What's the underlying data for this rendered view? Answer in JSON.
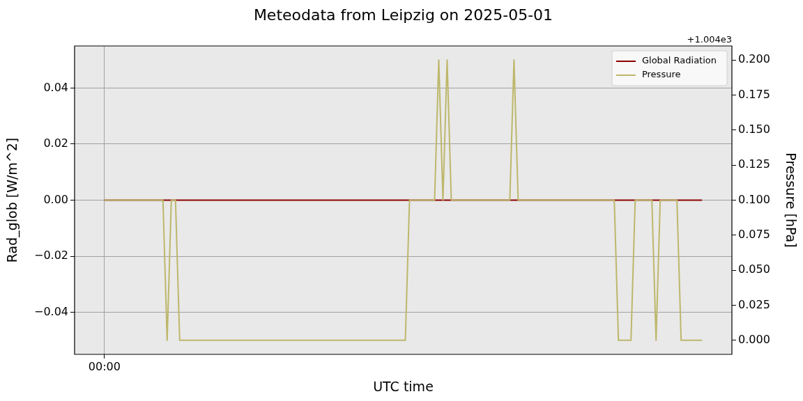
{
  "chart_data": {
    "type": "line",
    "title": "Meteodata from Leipzig on 2025-05-01",
    "xlabel": "UTC time",
    "ylabel": "Rad_glob [W/m^2]",
    "y2label": "Pressure [hPa]",
    "annotations": [
      "+1.004e3"
    ],
    "categories": [
      "00:00",
      null,
      null,
      null,
      null,
      null,
      null,
      null,
      null,
      null,
      null,
      null,
      null,
      null,
      null,
      null,
      null,
      null,
      null,
      null,
      null,
      null,
      null,
      null,
      null,
      null,
      null,
      null,
      null,
      null,
      null,
      null,
      null,
      null,
      null,
      null,
      null,
      null,
      null,
      null,
      null,
      null,
      null,
      null,
      null,
      null,
      null,
      null,
      null,
      null,
      null,
      null,
      null,
      null,
      null,
      null,
      null,
      null,
      null,
      null,
      null,
      null,
      null,
      null,
      null,
      null,
      null,
      null,
      null,
      null,
      null,
      null,
      null,
      null,
      null,
      null,
      null,
      null,
      null,
      null,
      null,
      null,
      null,
      null,
      null,
      null,
      null,
      null,
      null,
      null,
      null,
      null,
      null,
      null,
      null,
      null,
      null,
      null,
      null,
      null,
      null,
      null,
      null,
      null,
      null,
      null,
      null,
      null,
      null,
      null,
      null,
      null,
      null,
      null,
      null,
      null,
      null,
      null,
      null,
      null,
      null,
      null,
      null,
      null,
      null,
      null,
      null,
      null,
      null,
      null,
      null,
      null,
      null,
      null,
      null,
      null,
      null,
      null,
      null,
      null,
      null,
      null,
      null,
      null
    ],
    "ylim": [
      -0.055,
      0.055
    ],
    "yticks": [
      {
        "value": -0.04,
        "label": "−0.04"
      },
      {
        "value": -0.02,
        "label": "−0.02"
      },
      {
        "value": 0,
        "label": "0.00"
      },
      {
        "value": 0.02,
        "label": "0.02"
      },
      {
        "value": 0.04,
        "label": "0.04"
      }
    ],
    "y2lim": [
      -0.01,
      0.21
    ],
    "y2ticks": [
      {
        "value": 0,
        "label": "0.000"
      },
      {
        "value": 0.025,
        "label": "0.025"
      },
      {
        "value": 0.05,
        "label": "0.050"
      },
      {
        "value": 0.075,
        "label": "0.075"
      },
      {
        "value": 0.1,
        "label": "0.100"
      },
      {
        "value": 0.125,
        "label": "0.125"
      },
      {
        "value": 0.15,
        "label": "0.150"
      },
      {
        "value": 0.175,
        "label": "0.175"
      },
      {
        "value": 0.2,
        "label": "0.200"
      }
    ],
    "grid": true,
    "legend": "top right",
    "marker": "none",
    "line_style": "solid",
    "series": [
      {
        "name": "Global Radiation",
        "color": "#8b0000",
        "values": [
          0,
          0,
          0,
          0,
          0,
          0,
          0,
          0,
          0,
          0,
          0,
          0,
          0,
          0,
          0,
          0,
          0,
          0,
          0,
          0,
          0,
          0,
          0,
          0,
          0,
          0,
          0,
          0,
          0,
          0,
          0,
          0,
          0,
          0,
          0,
          0,
          0,
          0,
          0,
          0,
          0,
          0,
          0,
          0,
          0,
          0,
          0,
          0,
          0,
          0,
          0,
          0,
          0,
          0,
          0,
          0,
          0,
          0,
          0,
          0,
          0,
          0,
          0,
          0,
          0,
          0,
          0,
          0,
          0,
          0,
          0,
          0,
          0,
          0,
          0,
          0,
          0,
          0,
          0,
          0,
          0,
          0,
          0,
          0,
          0,
          0,
          0,
          0,
          0,
          0,
          0,
          0,
          0,
          0,
          0,
          0,
          0,
          0,
          0,
          0,
          0,
          0,
          0,
          0,
          0,
          0,
          0,
          0,
          0,
          0,
          0,
          0,
          0,
          0,
          0,
          0,
          0,
          0,
          0,
          0,
          0,
          0,
          0,
          0,
          0,
          0,
          0,
          0,
          0,
          0,
          0,
          0,
          0,
          0,
          0,
          0,
          0,
          0,
          0,
          0,
          0,
          0,
          0,
          0
        ]
      },
      {
        "name": "Pressure",
        "color": "#bdb76b",
        "axis": "y2",
        "values": [
          0.1,
          0.1,
          0.1,
          0.1,
          0.1,
          0.1,
          0.1,
          0.1,
          0.1,
          0.1,
          0.1,
          0.1,
          0.1,
          0.1,
          0.1,
          0,
          0.1,
          0.1,
          0,
          0,
          0,
          0,
          0,
          0,
          0,
          0,
          0,
          0,
          0,
          0,
          0,
          0,
          0,
          0,
          0,
          0,
          0,
          0,
          0,
          0,
          0,
          0,
          0,
          0,
          0,
          0,
          0,
          0,
          0,
          0,
          0,
          0,
          0,
          0,
          0,
          0,
          0,
          0,
          0,
          0,
          0,
          0,
          0,
          0,
          0,
          0,
          0,
          0,
          0,
          0,
          0,
          0,
          0,
          0.1,
          0.1,
          0.1,
          0.1,
          0.1,
          0.1,
          0.1,
          0.2,
          0.1,
          0.2,
          0.1,
          0.1,
          0.1,
          0.1,
          0.1,
          0.1,
          0.1,
          0.1,
          0.1,
          0.1,
          0.1,
          0.1,
          0.1,
          0.1,
          0.1,
          0.2,
          0.1,
          0.1,
          0.1,
          0.1,
          0.1,
          0.1,
          0.1,
          0.1,
          0.1,
          0.1,
          0.1,
          0.1,
          0.1,
          0.1,
          0.1,
          0.1,
          0.1,
          0.1,
          0.1,
          0.1,
          0.1,
          0.1,
          0.1,
          0.1,
          0,
          0,
          0,
          0,
          0.1,
          0.1,
          0.1,
          0.1,
          0.1,
          0,
          0.1,
          0.1,
          0.1,
          0.1,
          0.1,
          0,
          0,
          0,
          0,
          0,
          0
        ]
      }
    ]
  }
}
